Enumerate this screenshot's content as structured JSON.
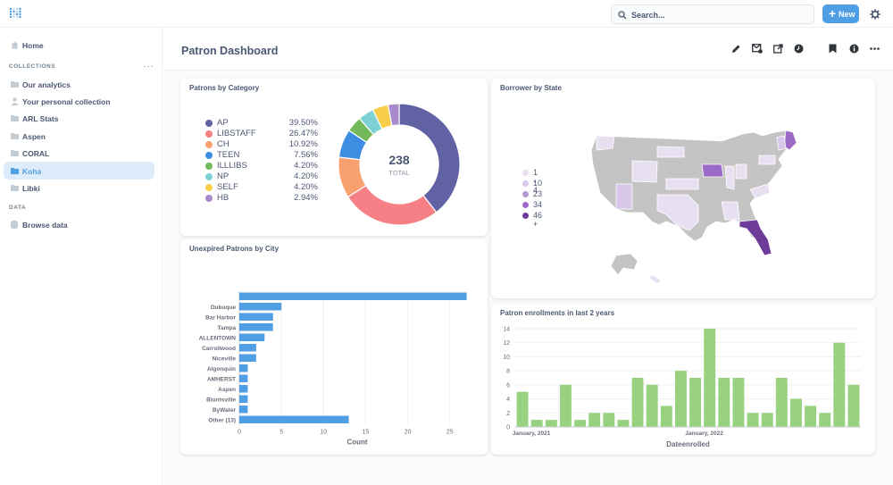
{
  "app": {
    "logo": "metabase-logo"
  },
  "search": {
    "placeholder": "Search..."
  },
  "header": {
    "new_label": "New"
  },
  "sidebar": {
    "home": "Home",
    "collections_label": "COLLECTIONS",
    "collections": [
      {
        "label": "Our analytics",
        "icon": "folder-icon"
      },
      {
        "label": "Your personal collection",
        "icon": "person-icon"
      },
      {
        "label": "ARL Stats",
        "icon": "folder-icon"
      },
      {
        "label": "Aspen",
        "icon": "folder-icon"
      },
      {
        "label": "CORAL",
        "icon": "folder-icon"
      },
      {
        "label": "Koha",
        "icon": "folder-icon",
        "active": true
      },
      {
        "label": "Libki",
        "icon": "folder-icon"
      }
    ],
    "data_label": "DATA",
    "browse": "Browse data"
  },
  "dashboard": {
    "title": "Patron Dashboard"
  },
  "colors": {
    "accent": "#509ee3",
    "bar": "#509ee3",
    "green": "#98d180",
    "nav_active_bg": "#ddecfa"
  },
  "cards": {
    "category": {
      "title": "Patrons by Category"
    },
    "state": {
      "title": "Borrower by State"
    },
    "city": {
      "title": "Unexpired Patrons by City"
    },
    "enroll": {
      "title": "Patron enrollments in last 2 years"
    }
  },
  "chart_data": [
    {
      "type": "pie",
      "title": "Patrons by Category",
      "total": "238",
      "total_label": "TOTAL",
      "categories": [
        "AP",
        "LIBSTAFF",
        "CH",
        "TEEN",
        "ILLLIBS",
        "NP",
        "SELF",
        "HB"
      ],
      "values": [
        39.5,
        26.47,
        10.92,
        7.56,
        4.2,
        4.2,
        4.2,
        2.94
      ],
      "labels": [
        "39.50%",
        "26.47%",
        "10.92%",
        "7.56%",
        "4.20%",
        "4.20%",
        "4.20%",
        "2.94%"
      ],
      "colors": [
        "#6062a3",
        "#f77f86",
        "#f8a16e",
        "#3d8ee3",
        "#74b85c",
        "#7dd1d3",
        "#f8cd4a",
        "#a889ca"
      ]
    },
    {
      "type": "map",
      "title": "Borrower by State",
      "legend": [
        "1 - 4",
        "10",
        "23",
        "34",
        "46 +"
      ],
      "legend_colors": [
        "#e8dff0",
        "#d8c7e8",
        "#b596d5",
        "#9b6ac6",
        "#6f3b98"
      ]
    },
    {
      "type": "bar",
      "orientation": "horizontal",
      "title": "Unexpired Patrons by City",
      "categories": [
        "",
        "Dubuque",
        "Bar Harbor",
        "Tampa",
        "ALLENTOWN",
        "Carrollwood",
        "Niceville",
        "Algonquin",
        "AMHERST",
        "Aspen",
        "Bluntsville",
        "ByWater",
        "Other (13)"
      ],
      "values": [
        27,
        5,
        4,
        4,
        3,
        2,
        2,
        1,
        1,
        1,
        1,
        1,
        13
      ],
      "xlabel": "Count",
      "xlim": [
        0,
        28
      ],
      "xticks": [
        0,
        5,
        10,
        15,
        20,
        25
      ]
    },
    {
      "type": "bar",
      "title": "Patron enrollments in last 2 years",
      "values": [
        5,
        1,
        1,
        6,
        1,
        2,
        2,
        1,
        7,
        6,
        3,
        8,
        7,
        14,
        7,
        7,
        2,
        2,
        7,
        4,
        3,
        2,
        12,
        6
      ],
      "ylim": [
        0,
        14
      ],
      "yticks": [
        0,
        2,
        4,
        6,
        8,
        10,
        12,
        14
      ],
      "xtick_labels": [
        "January, 2021",
        "January, 2022"
      ],
      "xlabel": "Dateenrolled"
    }
  ]
}
